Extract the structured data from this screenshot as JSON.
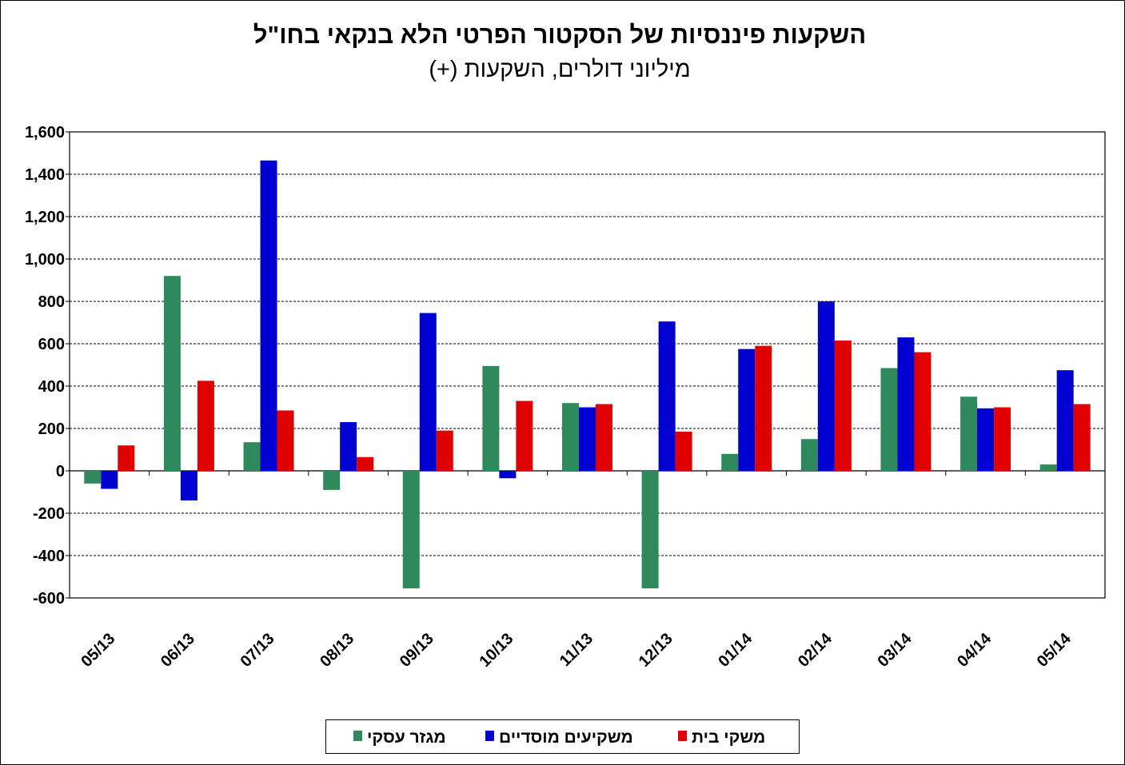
{
  "chart_data": {
    "type": "bar",
    "title": "השקעות פיננסיות של הסקטור הפרטי הלא בנקאי בחו\"ל",
    "subtitle": "מיליוני דולרים, השקעות (+)",
    "categories": [
      "05/13",
      "06/13",
      "07/13",
      "08/13",
      "09/13",
      "10/13",
      "11/13",
      "12/13",
      "01/14",
      "02/14",
      "03/14",
      "04/14",
      "05/14"
    ],
    "series": [
      {
        "name": "מגזר עסקי",
        "color": "#2e8a5c",
        "values": [
          -60,
          920,
          135,
          -90,
          -555,
          495,
          320,
          -555,
          80,
          150,
          485,
          350,
          30
        ]
      },
      {
        "name": "משקיעים מוסדיים",
        "color": "#0000d0",
        "values": [
          -85,
          -140,
          1465,
          230,
          745,
          -35,
          300,
          705,
          575,
          800,
          630,
          295,
          475
        ]
      },
      {
        "name": "משקי בית",
        "color": "#e00000",
        "values": [
          120,
          425,
          285,
          65,
          190,
          330,
          315,
          185,
          590,
          615,
          560,
          300,
          315
        ]
      }
    ],
    "ylim": [
      -600,
      1600
    ],
    "yticks": [
      -600,
      -400,
      -200,
      0,
      200,
      400,
      600,
      800,
      {
        "value": 1000,
        "label": "1,000"
      },
      {
        "value": 1200,
        "label": "1,200"
      },
      {
        "value": 1400,
        "label": "1,400"
      },
      {
        "value": 1600,
        "label": "1,600"
      }
    ],
    "grid": true,
    "legend": "bottom"
  }
}
